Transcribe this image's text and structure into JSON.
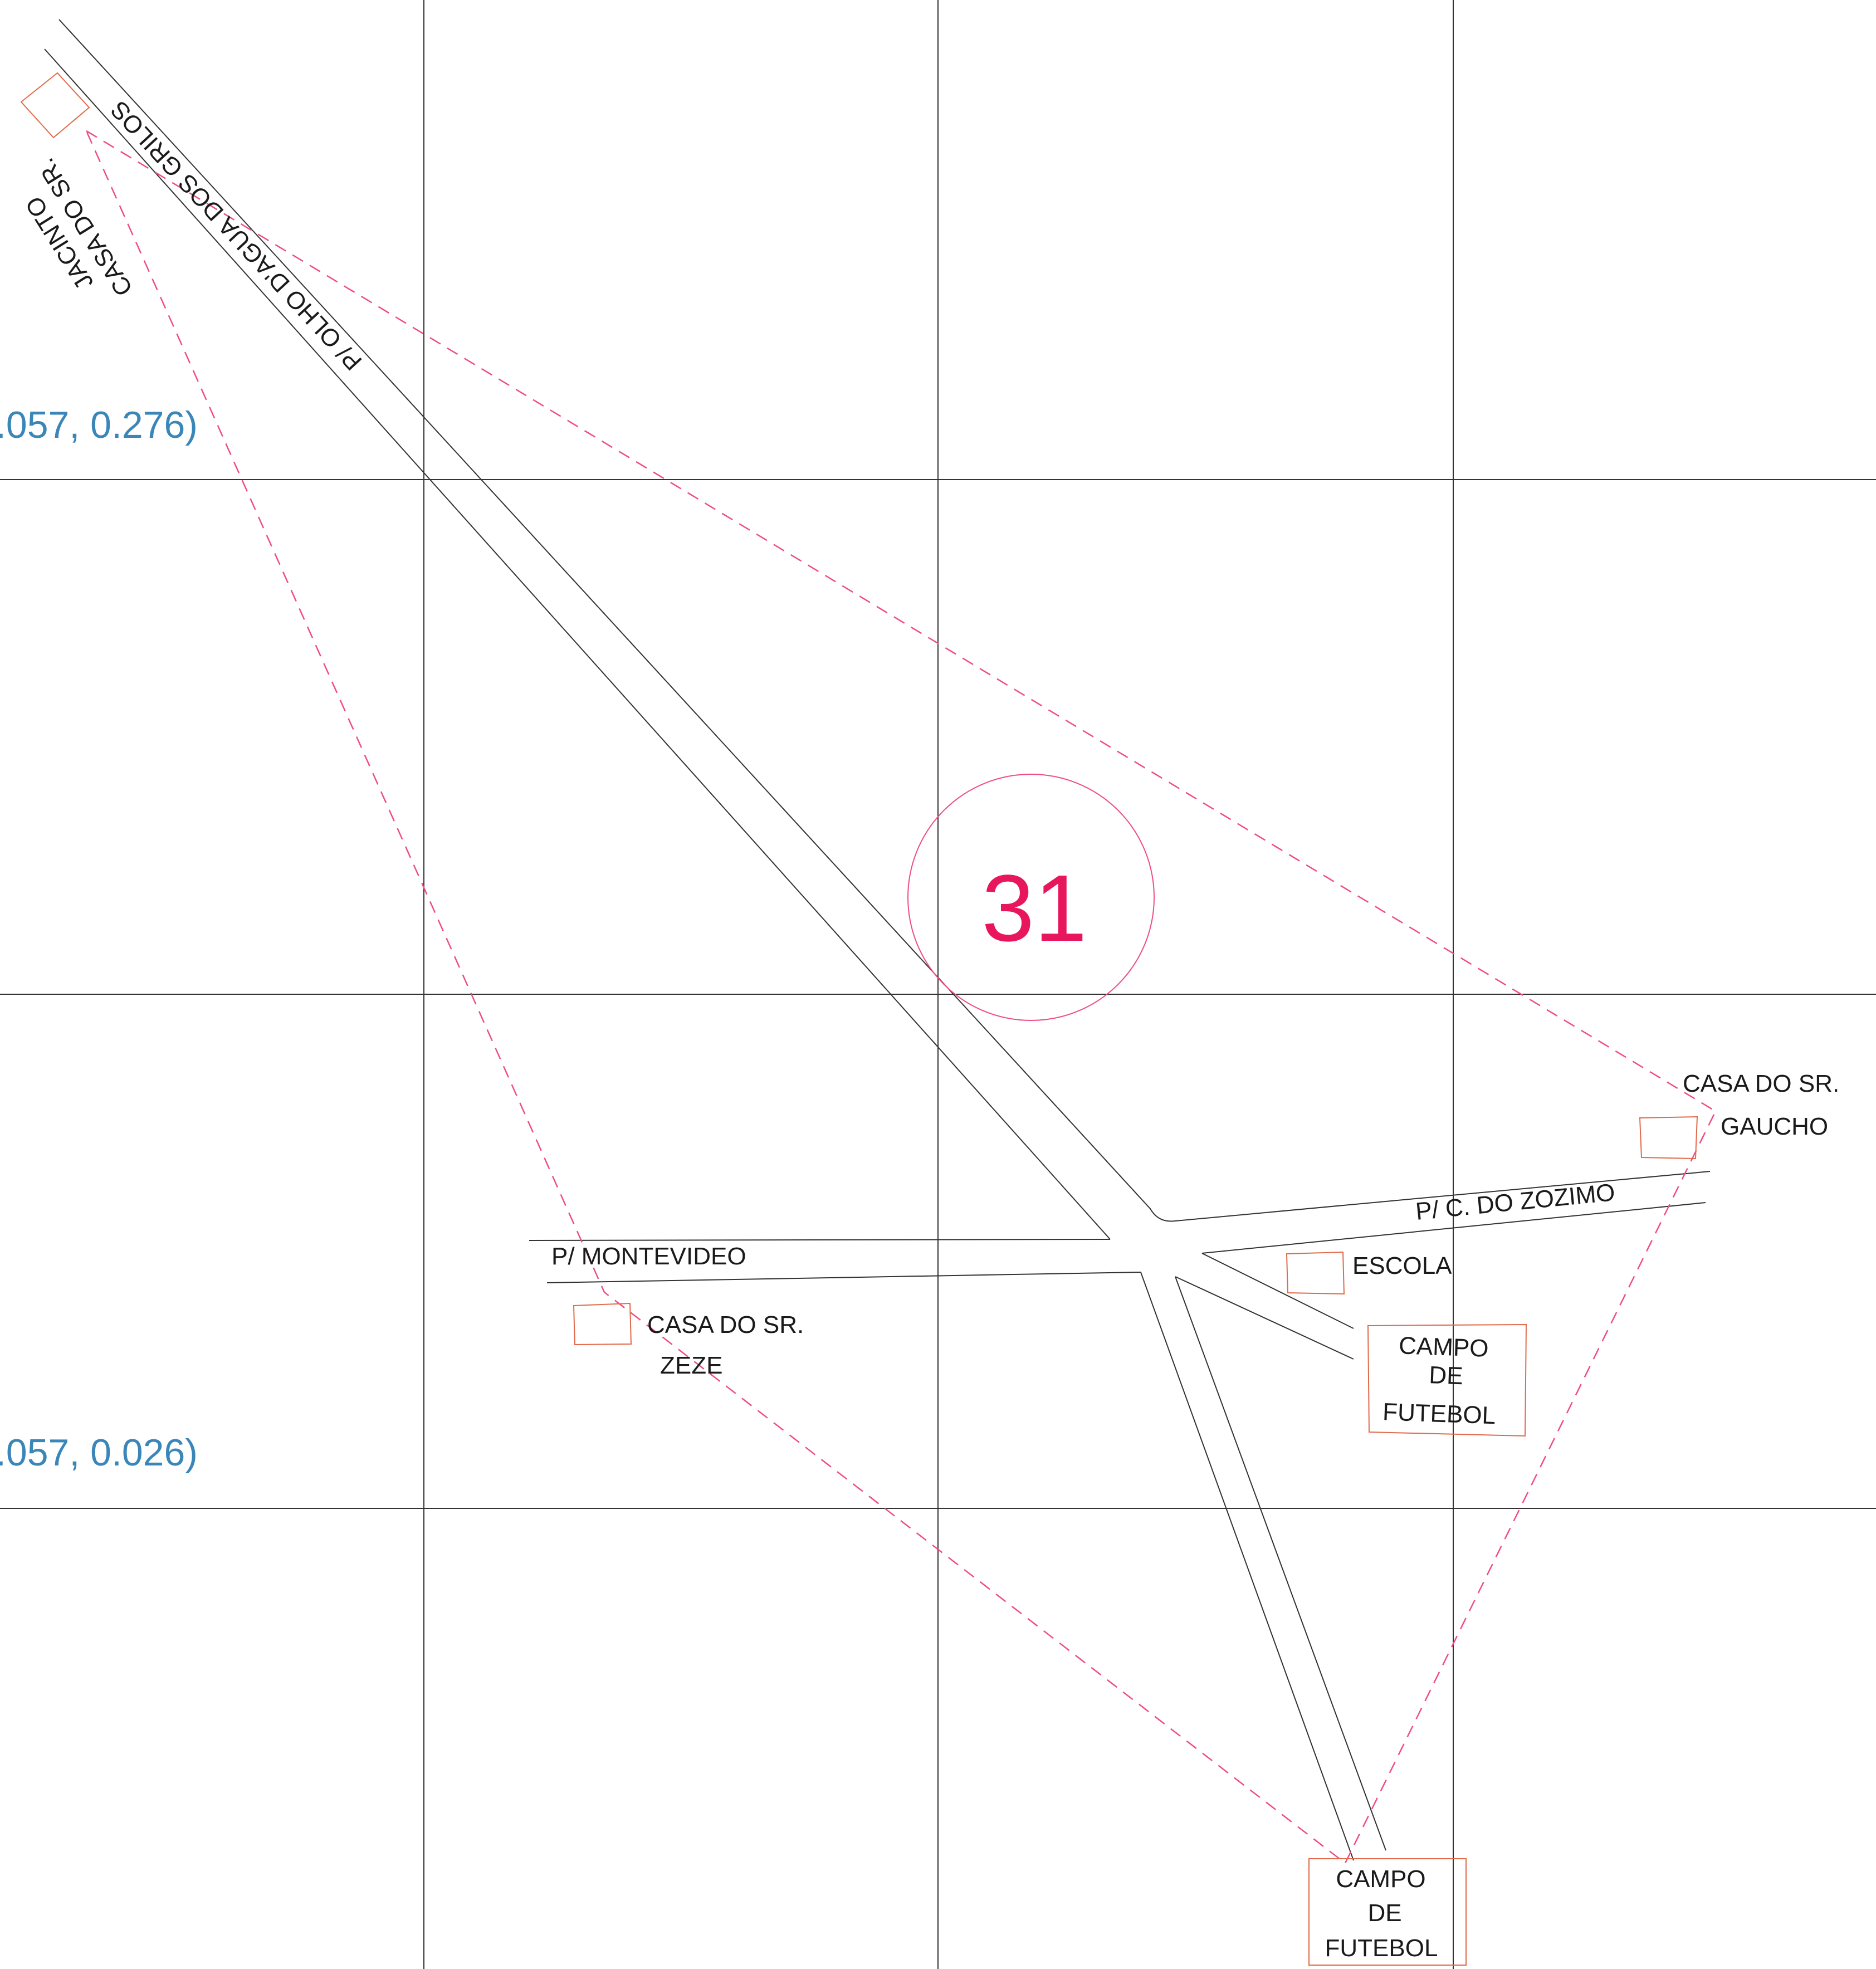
{
  "zone": {
    "number": "31",
    "color": "#e8175d"
  },
  "coordinates": {
    "upper": ".057,  0.276)",
    "lower": ".057,  0.026)"
  },
  "roads": {
    "olho_dagua": "P/ OLHO D'AGUA DOS GRILOS",
    "montevideo": "P/ MONTEVIDEO",
    "zozimo": "P/ C. DO ZOZIMO"
  },
  "places": {
    "jacinto": {
      "line1": "CASA DO SR.",
      "line2": "JACINTO"
    },
    "gaucho": {
      "line1": "CASA DO SR.",
      "line2": "GAUCHO"
    },
    "zeze": {
      "line1": "CASA DO SR.",
      "line2": "ZEZE"
    },
    "escola": {
      "line1": "ESCOLA"
    },
    "campo_mid": {
      "line1": "CAMPO",
      "line2": "DE",
      "line3": "FUTEBOL"
    },
    "campo_bottom": {
      "line1": "CAMPO",
      "line2": "DE",
      "line3": "FUTEBOL"
    }
  },
  "colors": {
    "grid": "#333333",
    "road": "#333333",
    "building": "#e06a4a",
    "boundary": "#ef4d80",
    "coordinates": "#3a86b8"
  }
}
